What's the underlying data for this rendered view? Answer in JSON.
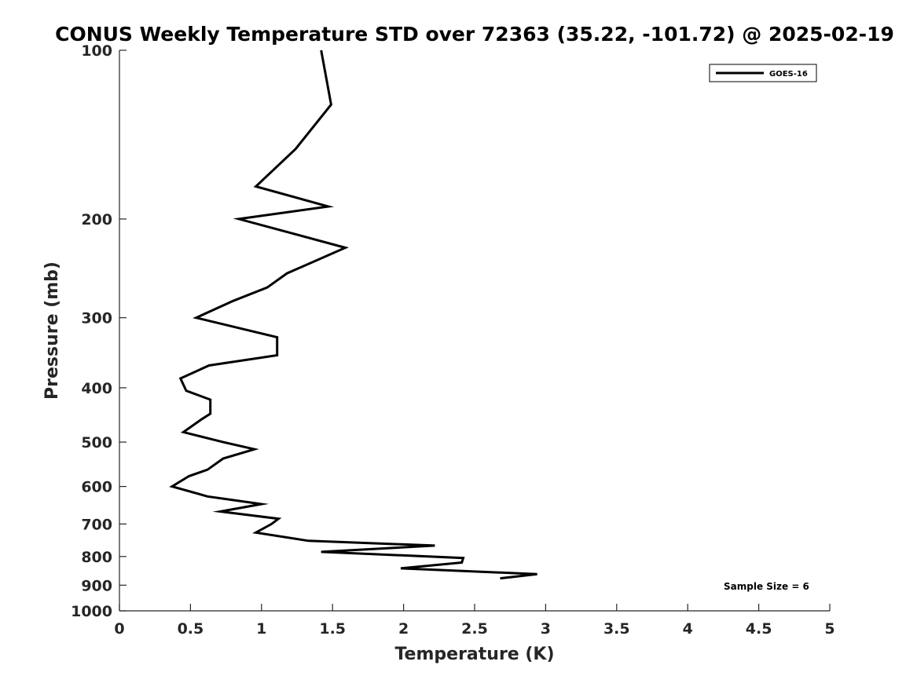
{
  "chart_data": {
    "type": "line",
    "title": "CONUS Weekly Temperature STD over 72363 (35.22, -101.72) @ 2025-02-19",
    "xlabel": "Temperature (K)",
    "ylabel": "Pressure (mb)",
    "xlim": [
      0,
      5
    ],
    "ylim": [
      100,
      1000
    ],
    "yscale": "log",
    "y_reversed": true,
    "x_ticks": [
      "0",
      "0.5",
      "1",
      "1.5",
      "2",
      "2.5",
      "3",
      "3.5",
      "4",
      "4.5",
      "5"
    ],
    "y_ticks": [
      "100",
      "200",
      "300",
      "400",
      "500",
      "600",
      "700",
      "800",
      "900",
      "1000"
    ],
    "grid": false,
    "legend": {
      "placement": "top-right",
      "entries": [
        "GOES-16"
      ]
    },
    "annotation": "Sample Size = 6",
    "colors": {
      "series": "#000000",
      "axis": "#262626"
    },
    "series": [
      {
        "name": "GOES-16",
        "points": [
          [
            1.42,
            100
          ],
          [
            1.49,
            125
          ],
          [
            1.24,
            150
          ],
          [
            0.96,
            175
          ],
          [
            1.47,
            190
          ],
          [
            0.84,
            200
          ],
          [
            1.59,
            225
          ],
          [
            1.18,
            250
          ],
          [
            1.04,
            265
          ],
          [
            0.8,
            280
          ],
          [
            0.54,
            300
          ],
          [
            1.11,
            325
          ],
          [
            1.11,
            350
          ],
          [
            0.63,
            365
          ],
          [
            0.43,
            385
          ],
          [
            0.47,
            405
          ],
          [
            0.64,
            420
          ],
          [
            0.64,
            445
          ],
          [
            0.58,
            455
          ],
          [
            0.45,
            480
          ],
          [
            0.73,
            500
          ],
          [
            0.95,
            515
          ],
          [
            0.73,
            535
          ],
          [
            0.62,
            560
          ],
          [
            0.49,
            575
          ],
          [
            0.37,
            600
          ],
          [
            0.62,
            625
          ],
          [
            1.0,
            645
          ],
          [
            0.71,
            665
          ],
          [
            1.12,
            685
          ],
          [
            1.07,
            700
          ],
          [
            0.96,
            725
          ],
          [
            1.33,
            750
          ],
          [
            2.22,
            765
          ],
          [
            1.42,
            785
          ],
          [
            2.42,
            805
          ],
          [
            2.41,
            820
          ],
          [
            1.98,
            840
          ],
          [
            2.94,
            860
          ],
          [
            2.68,
            875
          ]
        ]
      }
    ]
  }
}
